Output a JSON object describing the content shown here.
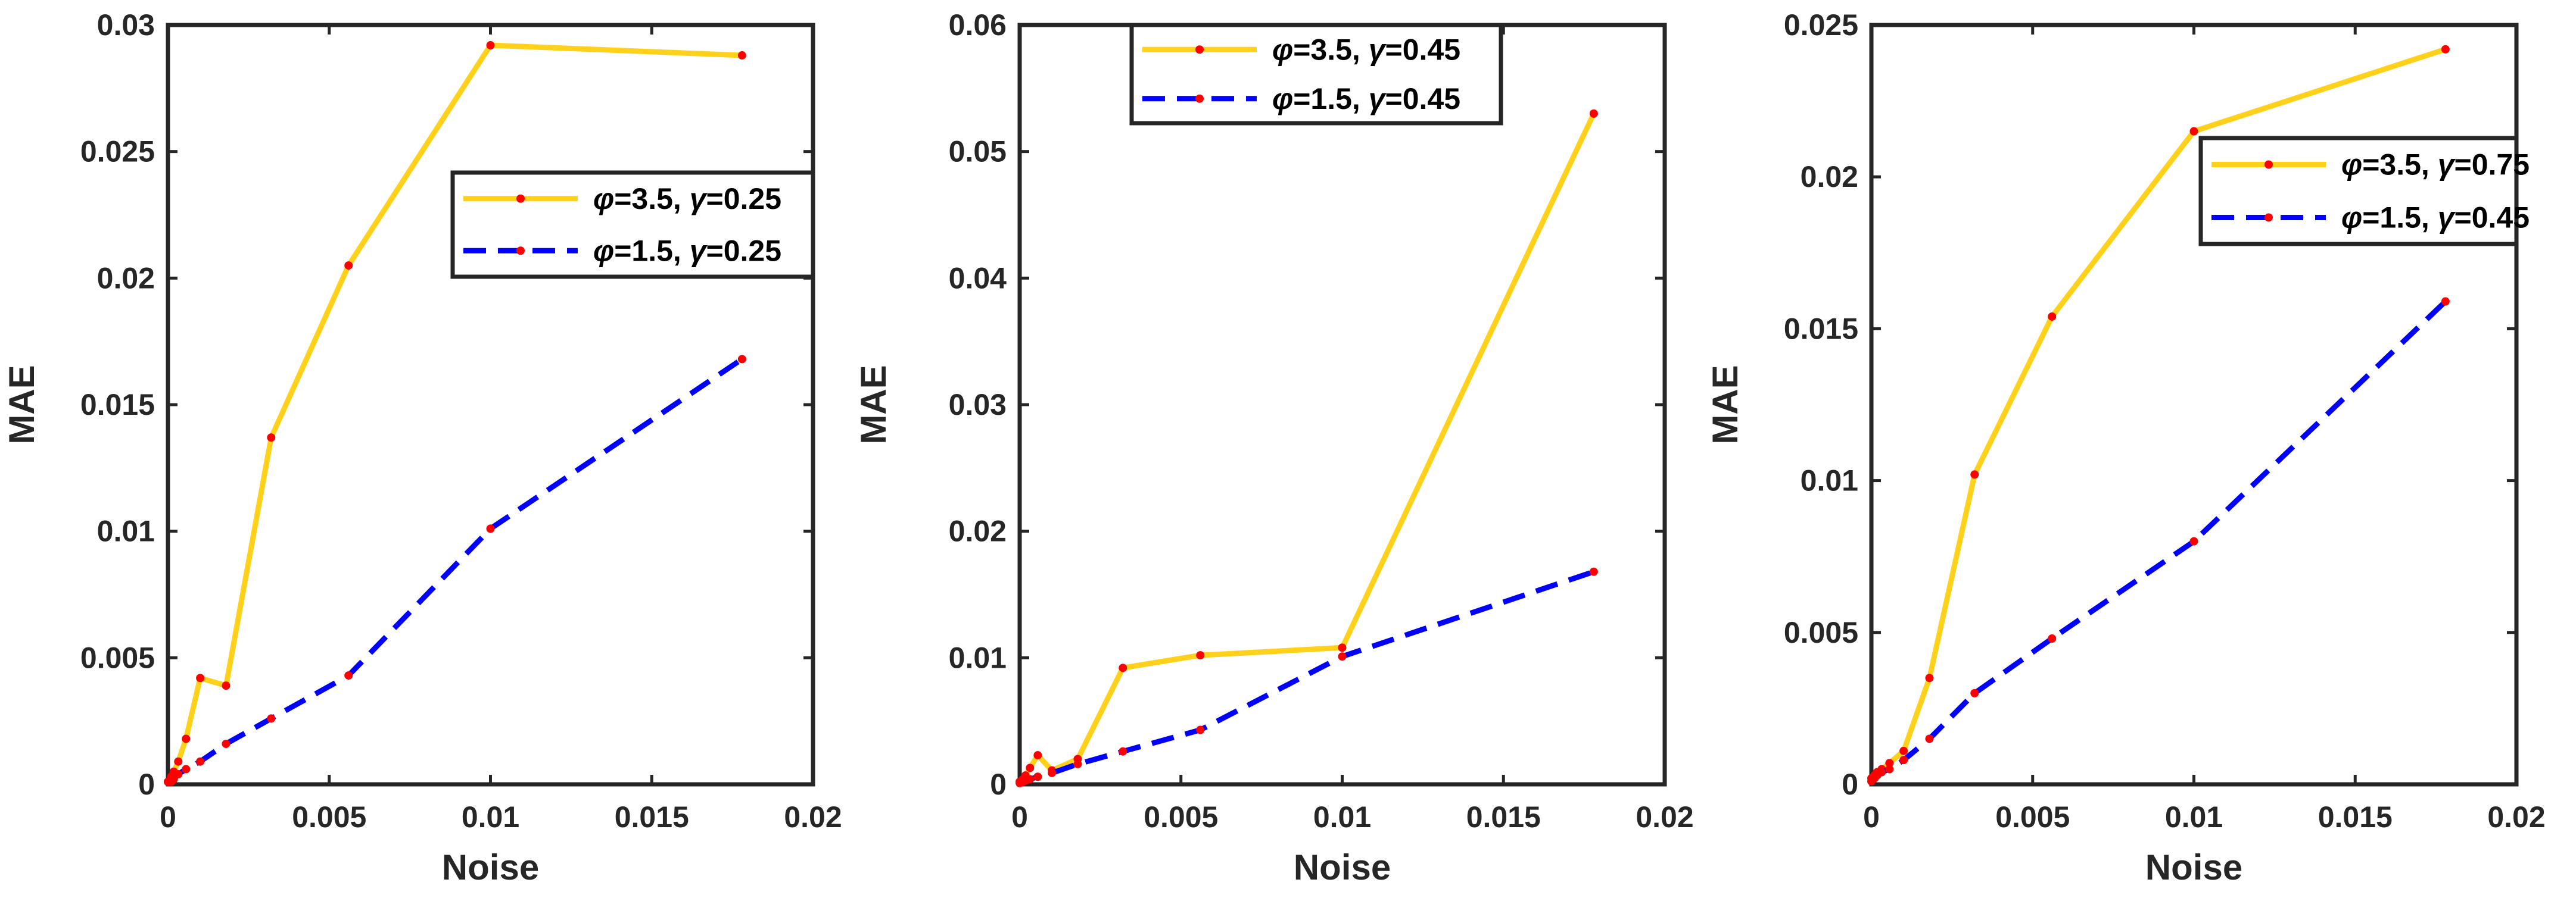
{
  "chart_data": [
    {
      "type": "line",
      "title": "",
      "xlabel": "Noise",
      "ylabel": "MAE",
      "xlim": [
        0,
        0.02
      ],
      "ylim": [
        0,
        0.03
      ],
      "xticks": [
        0,
        0.005,
        0.01,
        0.015,
        0.02
      ],
      "xtick_labels": [
        "0",
        "0.005",
        "0.01",
        "0.015",
        "0.02"
      ],
      "yticks": [
        0,
        0.005,
        0.01,
        0.015,
        0.02,
        0.025,
        0.03
      ],
      "ytick_labels": [
        "0",
        "0.005",
        "0.01",
        "0.015",
        "0.02",
        "0.025",
        "0.03"
      ],
      "legend_position": "right-upper",
      "series": [
        {
          "name": "φ=3.5, γ=0.25",
          "phi": "3.5",
          "gamma": "0.25",
          "color": "#FFD11A",
          "style": "solid",
          "x": [
            0,
            0.0001,
            0.00018,
            0.00032,
            0.00056,
            0.001,
            0.0018,
            0.0032,
            0.0056,
            0.01,
            0.0178
          ],
          "y": [
            0.0001,
            0.0003,
            0.0005,
            0.0009,
            0.0018,
            0.0042,
            0.0039,
            0.0137,
            0.0205,
            0.0292,
            0.0288
          ]
        },
        {
          "name": "φ=1.5, γ=0.25",
          "phi": "1.5",
          "gamma": "0.25",
          "color": "#0000FF",
          "style": "dashed",
          "x": [
            0,
            0.0001,
            0.00018,
            0.00032,
            0.00056,
            0.001,
            0.0018,
            0.0032,
            0.0056,
            0.01,
            0.0178
          ],
          "y": [
            0.0001,
            0.0001,
            0.0002,
            0.0004,
            0.0006,
            0.0009,
            0.0016,
            0.0026,
            0.0043,
            0.0101,
            0.0168
          ]
        }
      ]
    },
    {
      "type": "line",
      "title": "",
      "xlabel": "Noise",
      "ylabel": "MAE",
      "xlim": [
        0,
        0.02
      ],
      "ylim": [
        0,
        0.06
      ],
      "xticks": [
        0,
        0.005,
        0.01,
        0.015,
        0.02
      ],
      "xtick_labels": [
        "0",
        "0.005",
        "0.01",
        "0.015",
        "0.02"
      ],
      "yticks": [
        0,
        0.01,
        0.02,
        0.03,
        0.04,
        0.05,
        0.06
      ],
      "ytick_labels": [
        "0",
        "0.01",
        "0.02",
        "0.03",
        "0.04",
        "0.05",
        "0.06"
      ],
      "legend_position": "top",
      "series": [
        {
          "name": "φ=3.5, γ=0.45",
          "phi": "3.5",
          "gamma": "0.45",
          "color": "#FFD11A",
          "style": "solid",
          "x": [
            0,
            0.0001,
            0.00018,
            0.00032,
            0.00056,
            0.001,
            0.0018,
            0.0032,
            0.0056,
            0.01,
            0.0178
          ],
          "y": [
            0.0002,
            0.0004,
            0.0007,
            0.0013,
            0.0023,
            0.0011,
            0.002,
            0.0092,
            0.0102,
            0.0108,
            0.053
          ]
        },
        {
          "name": "φ=1.5, γ=0.45",
          "phi": "1.5",
          "gamma": "0.45",
          "color": "#0000FF",
          "style": "dashed",
          "x": [
            0,
            0.0001,
            0.00018,
            0.00032,
            0.00056,
            0.001,
            0.0018,
            0.0032,
            0.0056,
            0.01,
            0.0178
          ],
          "y": [
            0.0001,
            0.0002,
            0.0003,
            0.0004,
            0.0006,
            0.0009,
            0.0016,
            0.0026,
            0.0043,
            0.0101,
            0.0168
          ]
        }
      ]
    },
    {
      "type": "line",
      "title": "",
      "xlabel": "Noise",
      "ylabel": "MAE",
      "xlim": [
        0,
        0.02
      ],
      "ylim": [
        0,
        0.025
      ],
      "xticks": [
        0,
        0.005,
        0.01,
        0.015,
        0.02
      ],
      "xtick_labels": [
        "0",
        "0.005",
        "0.01",
        "0.015",
        "0.02"
      ],
      "yticks": [
        0,
        0.005,
        0.01,
        0.015,
        0.02,
        0.025
      ],
      "ytick_labels": [
        "0",
        "0.005",
        "0.01",
        "0.015",
        "0.02",
        "0.025"
      ],
      "legend_position": "right-upper",
      "series": [
        {
          "name": "φ=3.5, γ=0.75",
          "phi": "3.5",
          "gamma": "0.75",
          "color": "#FFD11A",
          "style": "solid",
          "x": [
            0,
            0.0001,
            0.00018,
            0.00032,
            0.00056,
            0.001,
            0.0018,
            0.0032,
            0.0056,
            0.01,
            0.0178
          ],
          "y": [
            0.0002,
            0.0003,
            0.0004,
            0.0005,
            0.0007,
            0.0011,
            0.0035,
            0.0102,
            0.0154,
            0.0215,
            0.0242
          ]
        },
        {
          "name": "φ=1.5, γ=0.45",
          "phi": "1.5",
          "gamma": "0.45",
          "color": "#0000FF",
          "style": "dashed",
          "x": [
            0,
            0.0001,
            0.00018,
            0.00032,
            0.00056,
            0.001,
            0.0018,
            0.0032,
            0.0056,
            0.01,
            0.0178
          ],
          "y": [
            0.0001,
            0.0002,
            0.0003,
            0.0004,
            0.0005,
            0.0008,
            0.0015,
            0.003,
            0.0048,
            0.008,
            0.0159
          ]
        }
      ]
    }
  ],
  "marker_color": "#FF0000"
}
